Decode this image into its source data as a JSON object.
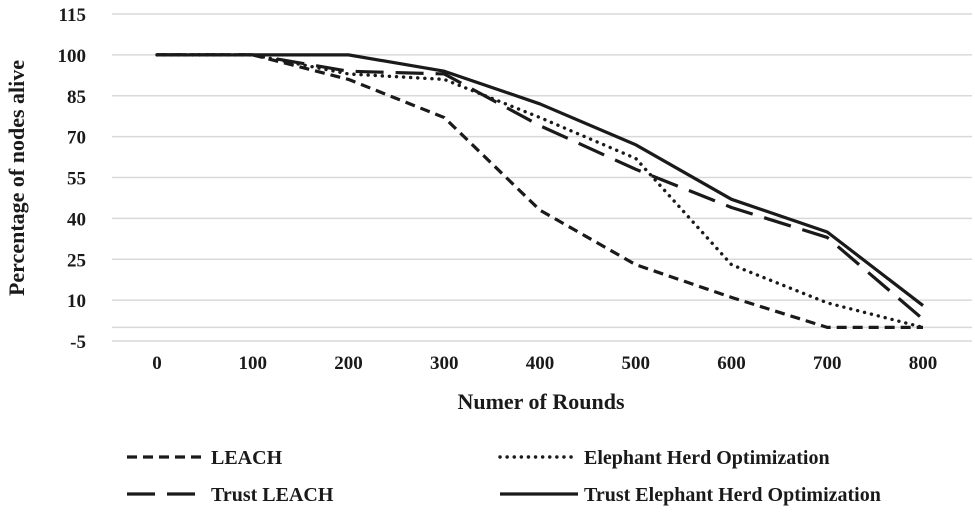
{
  "chart_data": {
    "type": "line",
    "title": "",
    "xlabel": "Numer of Rounds",
    "ylabel": "Percentage of nodes alive",
    "x": [
      0,
      100,
      200,
      300,
      400,
      500,
      600,
      700,
      800
    ],
    "ylim": [
      -5,
      115
    ],
    "yticks": [
      -5,
      10,
      25,
      40,
      55,
      70,
      85,
      100,
      115
    ],
    "grid": true,
    "legend_position": "bottom",
    "series": [
      {
        "name": "LEACH",
        "style": "short-dash",
        "values": [
          100,
          100,
          91,
          77,
          43,
          23,
          11,
          0,
          0
        ]
      },
      {
        "name": "Elephant Herd Optimization",
        "style": "dotted",
        "values": [
          100,
          100,
          93,
          91,
          77,
          62,
          23,
          9,
          0
        ]
      },
      {
        "name": "Trust LEACH",
        "style": "long-dash",
        "values": [
          100,
          100,
          94,
          93,
          74,
          58,
          44,
          33,
          3
        ]
      },
      {
        "name": "Trust Elephant Herd Optimization",
        "style": "solid",
        "values": [
          100,
          100,
          100,
          94,
          82,
          67,
          47,
          35,
          8
        ]
      }
    ],
    "colors": {
      "line": "#1a1a1a",
      "grid": "#d9d9d9"
    }
  }
}
